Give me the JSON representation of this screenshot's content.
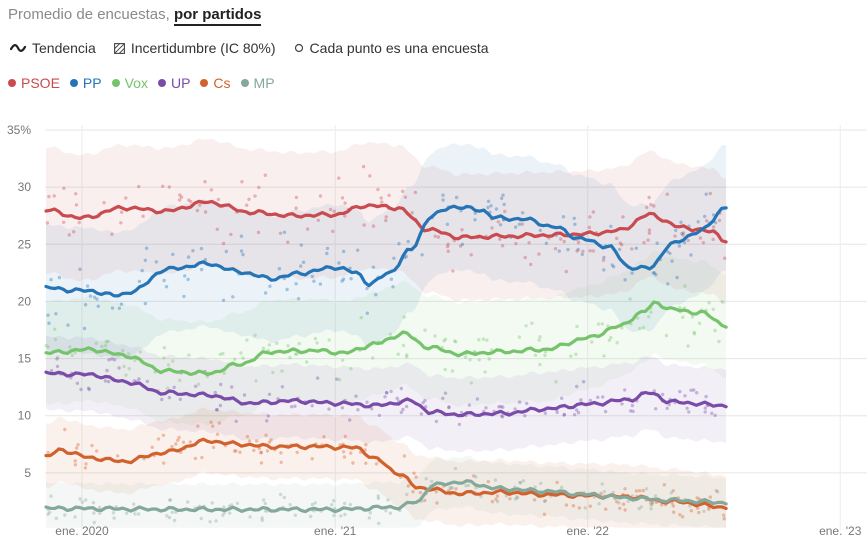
{
  "header": {
    "title": "Promedio de encuestas,",
    "tab_label": "por partidos"
  },
  "legend": {
    "trend_label": "Tendencia",
    "uncertainty_label": "Incertidumbre (IC 80%)",
    "points_label": "Cada punto es una encuesta"
  },
  "parties": [
    {
      "name": "PSOE",
      "color": "#c94a4f"
    },
    {
      "name": "PP",
      "color": "#2474b6"
    },
    {
      "name": "Vox",
      "color": "#75c36b"
    },
    {
      "name": "UP",
      "color": "#7a4ba8"
    },
    {
      "name": "Cs",
      "color": "#d2622d"
    },
    {
      "name": "MP",
      "color": "#84a89a"
    }
  ],
  "chart_data": {
    "type": "line",
    "x_unit": "date",
    "x_range": [
      "2019-11-10",
      "2023-01-31"
    ],
    "y_range": [
      0,
      35
    ],
    "y_ticks": [
      "35%",
      "30",
      "25",
      "20",
      "15",
      "10",
      "5"
    ],
    "x_ticks": [
      {
        "date": "2020-01-01",
        "label": "ene. 2020"
      },
      {
        "date": "2021-01-01",
        "label": "ene. '21"
      },
      {
        "date": "2022-01-01",
        "label": "ene. '22"
      },
      {
        "date": "2023-01-01",
        "label": "ene. '23"
      }
    ],
    "grid": true,
    "uncertainty": "IC 80%",
    "series": [
      {
        "name": "PSOE",
        "color": "#c94a4f",
        "band": 5.5,
        "points": [
          [
            "2019-11-10",
            28.0
          ],
          [
            "2020-01-01",
            27.3
          ],
          [
            "2020-03-01",
            28.2
          ],
          [
            "2020-05-01",
            27.9
          ],
          [
            "2020-07-01",
            28.7
          ],
          [
            "2020-09-01",
            27.8
          ],
          [
            "2020-11-01",
            27.5
          ],
          [
            "2021-01-01",
            27.6
          ],
          [
            "2021-02-15",
            28.4
          ],
          [
            "2021-04-01",
            28.2
          ],
          [
            "2021-05-15",
            26.3
          ],
          [
            "2021-07-01",
            25.6
          ],
          [
            "2021-09-01",
            25.7
          ],
          [
            "2021-11-01",
            25.8
          ],
          [
            "2022-01-01",
            25.9
          ],
          [
            "2022-02-15",
            26.2
          ],
          [
            "2022-04-01",
            27.6
          ],
          [
            "2022-05-15",
            26.5
          ],
          [
            "2022-07-01",
            26.1
          ],
          [
            "2022-07-20",
            25.3
          ]
        ]
      },
      {
        "name": "PP",
        "color": "#2474b6",
        "band": 5.5,
        "points": [
          [
            "2019-11-10",
            21.2
          ],
          [
            "2019-12-15",
            21.0
          ],
          [
            "2020-01-15",
            20.9
          ],
          [
            "2020-02-20",
            20.5
          ],
          [
            "2020-03-15",
            20.9
          ],
          [
            "2020-05-01",
            22.8
          ],
          [
            "2020-07-01",
            23.3
          ],
          [
            "2020-08-15",
            22.6
          ],
          [
            "2020-10-01",
            22.0
          ],
          [
            "2020-11-15",
            22.5
          ],
          [
            "2021-01-01",
            23.0
          ],
          [
            "2021-02-01",
            22.5
          ],
          [
            "2021-02-20",
            21.5
          ],
          [
            "2021-03-20",
            22.5
          ],
          [
            "2021-04-20",
            24.5
          ],
          [
            "2021-05-20",
            27.5
          ],
          [
            "2021-06-20",
            28.3
          ],
          [
            "2021-08-01",
            28.0
          ],
          [
            "2021-08-20",
            27.3
          ],
          [
            "2021-10-01",
            27.2
          ],
          [
            "2021-11-15",
            26.5
          ],
          [
            "2021-12-20",
            25.5
          ],
          [
            "2022-02-01",
            24.8
          ],
          [
            "2022-03-01",
            23.0
          ],
          [
            "2022-04-01",
            22.9
          ],
          [
            "2022-05-01",
            25.0
          ],
          [
            "2022-06-15",
            26.2
          ],
          [
            "2022-07-20",
            28.3
          ]
        ]
      },
      {
        "name": "Vox",
        "color": "#75c36b",
        "band": 4.5,
        "points": [
          [
            "2019-11-10",
            15.5
          ],
          [
            "2020-01-15",
            15.8
          ],
          [
            "2020-03-01",
            15.3
          ],
          [
            "2020-05-01",
            13.9
          ],
          [
            "2020-07-01",
            13.7
          ],
          [
            "2020-08-15",
            14.5
          ],
          [
            "2020-10-01",
            15.6
          ],
          [
            "2020-12-01",
            15.7
          ],
          [
            "2021-01-15",
            15.5
          ],
          [
            "2021-03-01",
            16.3
          ],
          [
            "2021-04-10",
            17.2
          ],
          [
            "2021-05-15",
            16.0
          ],
          [
            "2021-07-01",
            15.4
          ],
          [
            "2021-09-01",
            15.6
          ],
          [
            "2021-11-01",
            15.8
          ],
          [
            "2022-01-01",
            16.8
          ],
          [
            "2022-02-15",
            17.8
          ],
          [
            "2022-03-20",
            19.0
          ],
          [
            "2022-04-10",
            19.9
          ],
          [
            "2022-05-01",
            19.3
          ],
          [
            "2022-06-15",
            19.0
          ],
          [
            "2022-07-20",
            17.9
          ]
        ]
      },
      {
        "name": "UP",
        "color": "#7a4ba8",
        "band": 3.2,
        "points": [
          [
            "2019-11-10",
            13.7
          ],
          [
            "2020-01-15",
            13.6
          ],
          [
            "2020-03-01",
            13.0
          ],
          [
            "2020-05-01",
            12.0
          ],
          [
            "2020-07-01",
            11.8
          ],
          [
            "2020-09-01",
            11.1
          ],
          [
            "2020-11-01",
            11.3
          ],
          [
            "2021-01-01",
            11.1
          ],
          [
            "2021-03-01",
            10.9
          ],
          [
            "2021-04-20",
            11.3
          ],
          [
            "2021-05-20",
            10.3
          ],
          [
            "2021-07-01",
            10.1
          ],
          [
            "2021-09-01",
            10.2
          ],
          [
            "2021-11-01",
            10.6
          ],
          [
            "2022-01-01",
            11.0
          ],
          [
            "2022-03-01",
            11.4
          ],
          [
            "2022-04-01",
            12.0
          ],
          [
            "2022-05-01",
            11.2
          ],
          [
            "2022-07-20",
            10.9
          ]
        ]
      },
      {
        "name": "Cs",
        "color": "#d2622d",
        "band": 2.8,
        "points": [
          [
            "2019-11-10",
            6.4
          ],
          [
            "2019-12-01",
            7.0
          ],
          [
            "2020-01-15",
            6.3
          ],
          [
            "2020-03-01",
            6.0
          ],
          [
            "2020-05-01",
            6.8
          ],
          [
            "2020-07-01",
            7.8
          ],
          [
            "2020-08-15",
            7.5
          ],
          [
            "2020-10-01",
            7.3
          ],
          [
            "2020-12-01",
            7.3
          ],
          [
            "2021-02-01",
            7.2
          ],
          [
            "2021-03-01",
            6.2
          ],
          [
            "2021-04-01",
            5.0
          ],
          [
            "2021-05-01",
            3.7
          ],
          [
            "2021-07-01",
            3.2
          ],
          [
            "2021-09-01",
            3.3
          ],
          [
            "2021-11-01",
            3.1
          ],
          [
            "2022-01-01",
            3.0
          ],
          [
            "2022-03-01",
            2.9
          ],
          [
            "2022-05-01",
            2.5
          ],
          [
            "2022-07-20",
            2.0
          ]
        ]
      },
      {
        "name": "MP",
        "color": "#84a89a",
        "band": 2.2,
        "points": [
          [
            "2019-11-10",
            1.9
          ],
          [
            "2020-06-01",
            1.8
          ],
          [
            "2021-01-01",
            1.8
          ],
          [
            "2021-04-01",
            2.0
          ],
          [
            "2021-05-01",
            2.5
          ],
          [
            "2021-05-20",
            3.9
          ],
          [
            "2021-07-01",
            4.2
          ],
          [
            "2021-09-01",
            3.6
          ],
          [
            "2021-11-01",
            3.4
          ],
          [
            "2022-01-01",
            3.1
          ],
          [
            "2022-03-01",
            2.8
          ],
          [
            "2022-05-01",
            2.6
          ],
          [
            "2022-07-20",
            2.4
          ]
        ]
      }
    ]
  }
}
